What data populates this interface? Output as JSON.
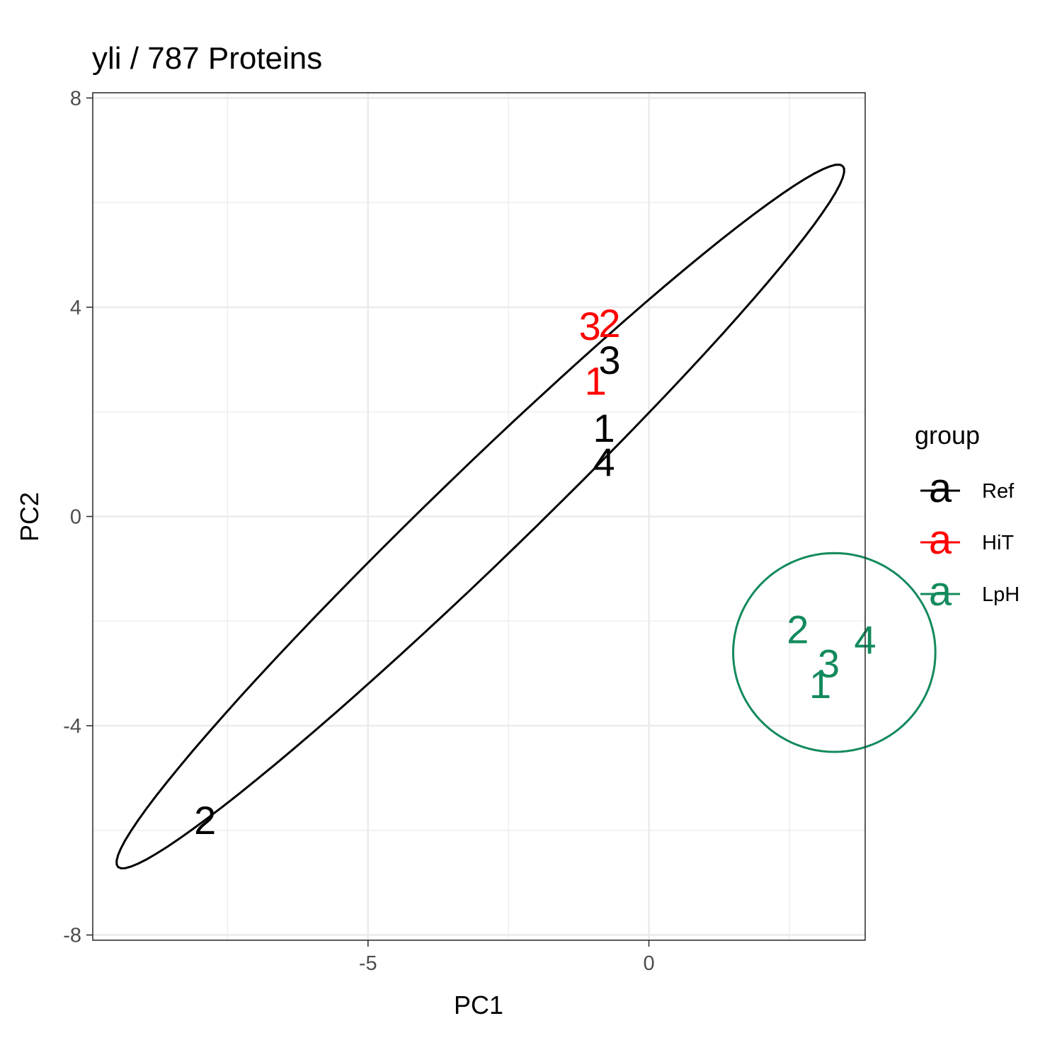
{
  "chart_data": {
    "type": "scatter",
    "title": "yli /  787  Proteins",
    "xlabel": "PC1",
    "ylabel": "PC2",
    "xlim": [
      -9.9,
      3.85
    ],
    "ylim": [
      -8.1,
      8.1
    ],
    "x_ticks": [
      -5,
      0
    ],
    "x_tick_labels": [
      "-5",
      "0"
    ],
    "y_ticks": [
      -8,
      -4,
      0,
      4,
      8
    ],
    "y_tick_labels": [
      "-8",
      "-4",
      "0",
      "4",
      "8"
    ],
    "x_minor_ticks": [
      -7.5,
      -2.5,
      2.5
    ],
    "y_minor_ticks": [
      -6,
      -2,
      2,
      6
    ],
    "grid": true,
    "legend": {
      "title": "group",
      "position": "right",
      "key_glyph": "a",
      "entries": [
        {
          "label": "Ref",
          "color": "#000000"
        },
        {
          "label": "HiT",
          "color": "#ff0000"
        },
        {
          "label": "LpH",
          "color": "#138a5c"
        }
      ]
    },
    "series": [
      {
        "name": "Ref",
        "color": "#000000",
        "points": [
          {
            "label": "1",
            "x": -0.8,
            "y": 1.7
          },
          {
            "label": "2",
            "x": -7.9,
            "y": -5.8
          },
          {
            "label": "3",
            "x": -0.7,
            "y": 3.0
          },
          {
            "label": "4",
            "x": -0.8,
            "y": 1.05
          }
        ],
        "ellipse": {
          "cx": -3.0,
          "cy": 0.0,
          "rx": 9.3,
          "ry": 0.85,
          "angle_deg": 46.1
        }
      },
      {
        "name": "HiT",
        "color": "#ff0000",
        "points": [
          {
            "label": "1",
            "x": -0.95,
            "y": 2.6
          },
          {
            "label": "2",
            "x": -0.7,
            "y": 3.7
          },
          {
            "label": "3",
            "x": -1.05,
            "y": 3.65
          }
        ]
      },
      {
        "name": "LpH",
        "color": "#138a5c",
        "points": [
          {
            "label": "1",
            "x": 3.05,
            "y": -3.2
          },
          {
            "label": "2",
            "x": 2.65,
            "y": -2.15
          },
          {
            "label": "3",
            "x": 3.2,
            "y": -2.8
          },
          {
            "label": "4",
            "x": 3.85,
            "y": -2.35
          }
        ],
        "ellipse": {
          "cx": 3.3,
          "cy": -2.6,
          "rx": 1.8,
          "ry": 1.9,
          "angle_deg": 0
        }
      }
    ]
  }
}
